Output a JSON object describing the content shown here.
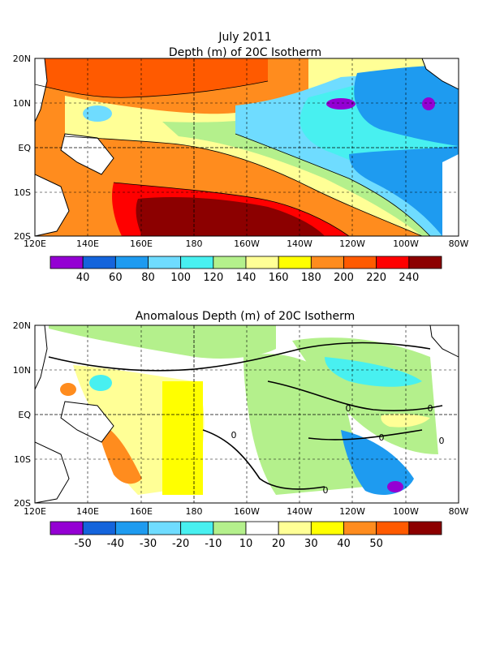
{
  "top_panel": {
    "title_line1": "July 2011",
    "title_line2": "Depth (m) of 20C Isotherm",
    "lon_ticks": [
      "120E",
      "140E",
      "160E",
      "180",
      "160W",
      "140W",
      "120W",
      "100W",
      "80W"
    ],
    "lat_ticks": [
      "20N",
      "10N",
      "EQ",
      "10S",
      "20S"
    ],
    "colorbar": {
      "labels": [
        "40",
        "60",
        "80",
        "100",
        "120",
        "140",
        "160",
        "180",
        "200",
        "220",
        "240"
      ],
      "colors": [
        "#9400d3",
        "#1464dc",
        "#1e9bf0",
        "#6fdcff",
        "#48f0f0",
        "#b4f08c",
        "#ffff96",
        "#ffff00",
        "#ff8c1e",
        "#ff5a00",
        "#ff0000",
        "#8c0000"
      ]
    }
  },
  "bottom_panel": {
    "title": "Anomalous Depth (m) of 20C Isotherm",
    "lon_ticks": [
      "120E",
      "140E",
      "160E",
      "180",
      "160W",
      "140W",
      "120W",
      "100W",
      "80W"
    ],
    "lat_ticks": [
      "20N",
      "10N",
      "EQ",
      "10S",
      "20S"
    ],
    "contour_labels": [
      "0",
      "0",
      "0",
      "0",
      "0",
      "0",
      "0"
    ],
    "colorbar": {
      "labels": [
        "-50",
        "-40",
        "-30",
        "-20",
        "-10",
        "10",
        "20",
        "30",
        "40",
        "50"
      ],
      "colors": [
        "#9400d3",
        "#1464dc",
        "#1e9bf0",
        "#6fdcff",
        "#48f0f0",
        "#b4f08c",
        "#ffffff",
        "#ffff96",
        "#ffff00",
        "#ff8c1e",
        "#ff5a00",
        "#8c0000"
      ]
    }
  }
}
